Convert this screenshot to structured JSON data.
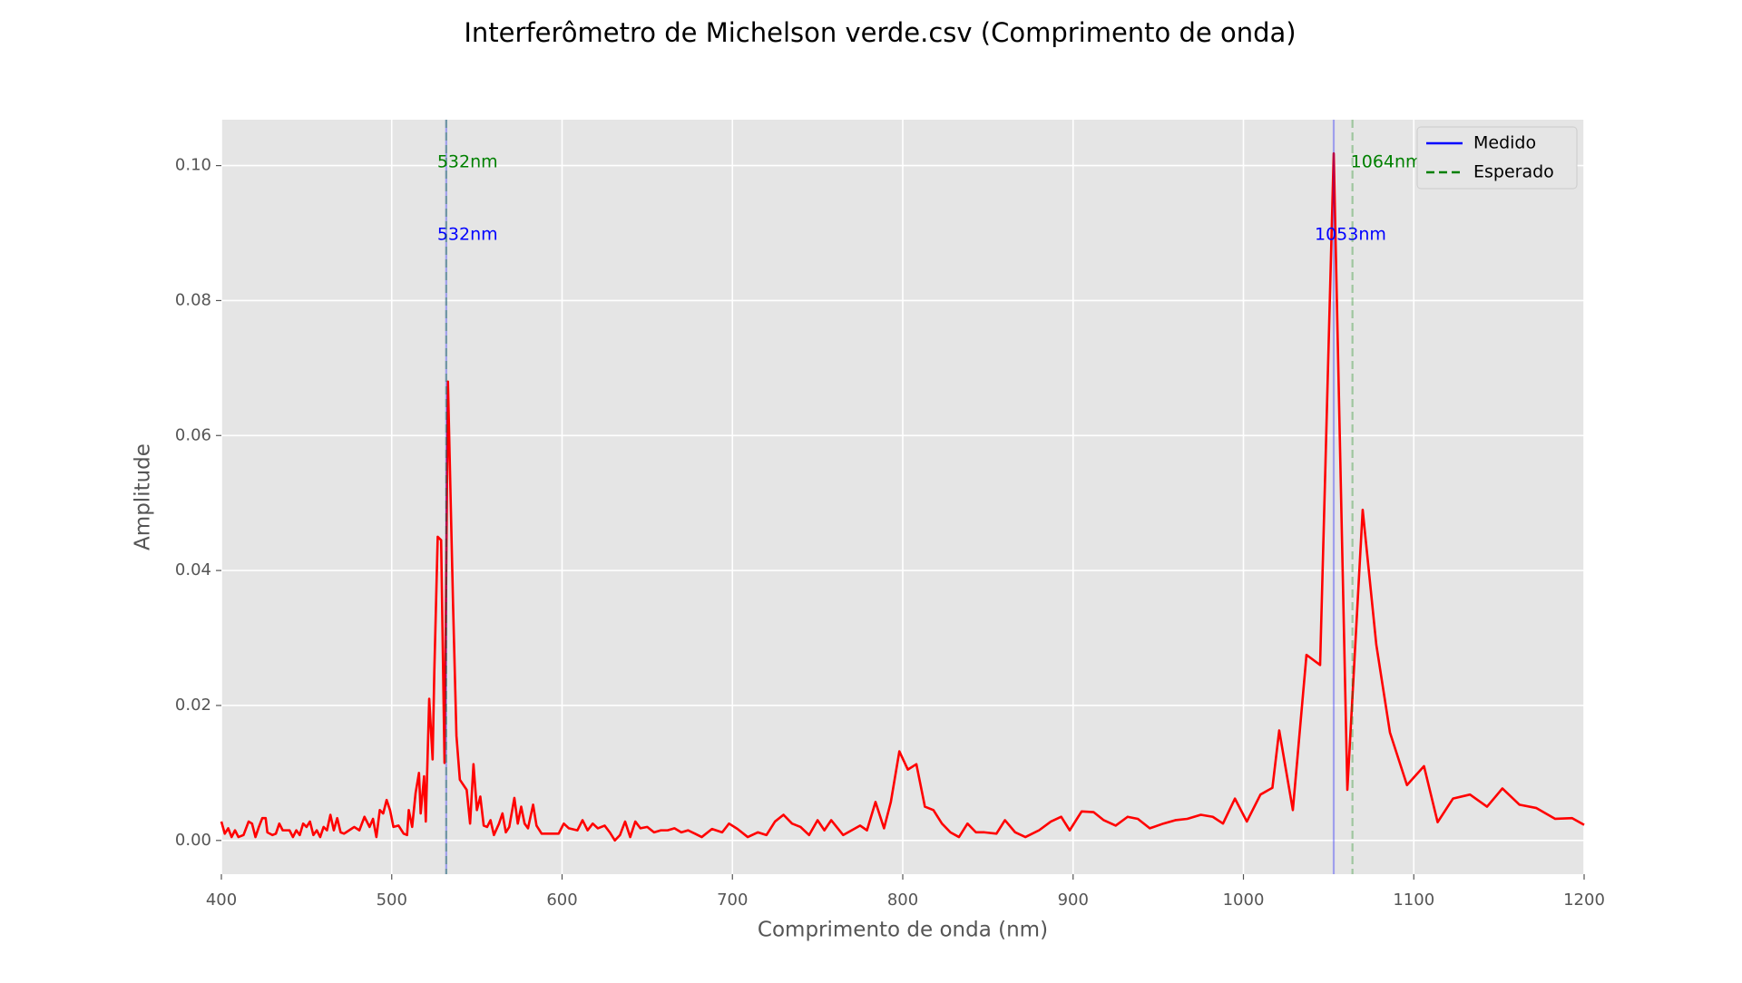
{
  "chart_data": {
    "type": "line",
    "title": "Interferômetro de Michelson verde.csv (Comprimento de onda)",
    "xlabel": "Comprimento de onda (nm)",
    "ylabel": "Amplitude",
    "x": [
      400,
      402,
      404,
      406,
      408,
      410,
      413,
      416,
      418,
      420,
      422,
      424,
      426,
      427,
      430,
      432,
      434,
      436,
      440,
      442,
      444,
      446,
      448,
      450,
      452,
      454,
      456,
      458,
      460,
      462,
      464,
      466,
      468,
      470,
      472,
      475,
      478,
      481,
      484,
      487,
      489,
      491,
      493,
      495,
      497,
      499,
      501,
      504,
      507,
      509,
      510,
      512,
      514,
      516,
      517,
      519,
      520,
      522,
      524,
      525,
      527,
      529,
      531,
      533,
      536,
      538,
      540,
      544,
      546,
      548,
      550,
      552,
      554,
      556,
      558,
      560,
      563,
      565,
      567,
      569,
      572,
      574,
      576,
      578,
      580,
      583,
      585,
      588,
      592,
      598,
      601,
      604,
      609,
      612,
      615,
      618,
      621,
      625,
      628,
      631,
      634,
      637,
      640,
      643,
      646,
      650,
      654,
      658,
      662,
      666,
      670,
      674,
      678,
      682,
      688,
      694,
      698,
      703,
      709,
      715,
      720,
      725,
      730,
      735,
      740,
      745,
      750,
      754,
      758,
      765,
      770,
      775,
      779,
      784,
      789,
      793,
      798,
      803,
      808,
      813,
      818,
      823,
      828,
      833,
      838,
      843,
      848,
      855,
      860,
      866,
      872,
      880,
      887,
      893,
      898,
      905,
      912,
      918,
      925,
      932,
      938,
      945,
      953,
      960,
      967,
      975,
      982,
      988,
      995,
      1002,
      1010,
      1017,
      1021,
      1029,
      1037,
      1045,
      1053,
      1061,
      1070,
      1078,
      1086,
      1096,
      1106,
      1114,
      1123,
      1133,
      1143,
      1152,
      1162,
      1172,
      1183,
      1193,
      1200
    ],
    "series": [
      {
        "color": "#ff0000",
        "values": [
          0.0028,
          0.001,
          0.0018,
          0.0005,
          0.0015,
          0.0005,
          0.0008,
          0.0028,
          0.0025,
          0.0005,
          0.002,
          0.0033,
          0.0033,
          0.0012,
          0.0008,
          0.001,
          0.0025,
          0.0015,
          0.0015,
          0.0005,
          0.0015,
          0.0008,
          0.0025,
          0.002,
          0.0028,
          0.0008,
          0.0015,
          0.0005,
          0.002,
          0.0015,
          0.0038,
          0.0015,
          0.0033,
          0.0012,
          0.001,
          0.0015,
          0.002,
          0.0015,
          0.0035,
          0.002,
          0.0032,
          0.0005,
          0.0045,
          0.004,
          0.006,
          0.0045,
          0.002,
          0.0022,
          0.001,
          0.0008,
          0.0045,
          0.002,
          0.007,
          0.01,
          0.004,
          0.0095,
          0.0028,
          0.021,
          0.012,
          0.025,
          0.045,
          0.0445,
          0.0115,
          0.068,
          0.035,
          0.0155,
          0.009,
          0.0075,
          0.0025,
          0.0113,
          0.0045,
          0.0065,
          0.0022,
          0.002,
          0.003,
          0.0008,
          0.0025,
          0.004,
          0.0012,
          0.002,
          0.0063,
          0.0025,
          0.005,
          0.0025,
          0.0018,
          0.0053,
          0.0022,
          0.001,
          0.001,
          0.001,
          0.0025,
          0.0018,
          0.0015,
          0.003,
          0.0015,
          0.0025,
          0.0018,
          0.0022,
          0.0012,
          0.0,
          0.0008,
          0.0028,
          0.0005,
          0.0028,
          0.0018,
          0.002,
          0.0012,
          0.0015,
          0.0015,
          0.0018,
          0.0012,
          0.0015,
          0.001,
          0.0005,
          0.0017,
          0.0012,
          0.0025,
          0.0017,
          0.0005,
          0.0012,
          0.0008,
          0.0028,
          0.0038,
          0.0025,
          0.002,
          0.0008,
          0.003,
          0.0015,
          0.003,
          0.0008,
          0.0015,
          0.0022,
          0.0015,
          0.0057,
          0.0018,
          0.0057,
          0.0132,
          0.0105,
          0.0113,
          0.005,
          0.0045,
          0.0025,
          0.0012,
          0.0005,
          0.0025,
          0.0012,
          0.0012,
          0.001,
          0.003,
          0.0012,
          0.0005,
          0.0015,
          0.0028,
          0.0035,
          0.0015,
          0.0043,
          0.0042,
          0.003,
          0.0022,
          0.0035,
          0.0032,
          0.0018,
          0.0025,
          0.003,
          0.0032,
          0.0038,
          0.0035,
          0.0025,
          0.0062,
          0.0028,
          0.0068,
          0.0078,
          0.0163,
          0.0045,
          0.0275,
          0.026,
          0.1018,
          0.0075,
          0.049,
          0.029,
          0.016,
          0.0082,
          0.011,
          0.0027,
          0.0062,
          0.0068,
          0.005,
          0.0077,
          0.0053,
          0.0048,
          0.0032,
          0.0033,
          0.0023
        ]
      }
    ],
    "vlines": [
      {
        "name": "Medido",
        "color": "#0000ff",
        "dash": false,
        "values": [
          532,
          1053
        ],
        "value_labels": [
          "532nm",
          "1053nm"
        ]
      },
      {
        "name": "Esperado",
        "color": "#008000",
        "dash": true,
        "values": [
          532,
          1064
        ],
        "value_labels": [
          "532nm",
          "1064nm"
        ]
      }
    ],
    "xlim": [
      400,
      1200
    ],
    "xticks": [
      400,
      500,
      600,
      700,
      800,
      900,
      1000,
      1100,
      1200
    ],
    "ylim": [
      -0.005,
      0.1068
    ],
    "yticks": [
      {
        "value": 0,
        "label": "0.00"
      },
      0.02,
      0.04,
      0.06,
      0.08,
      {
        "value": 0.1,
        "label": "0.10"
      }
    ],
    "grid": true,
    "legend": "upper right"
  }
}
